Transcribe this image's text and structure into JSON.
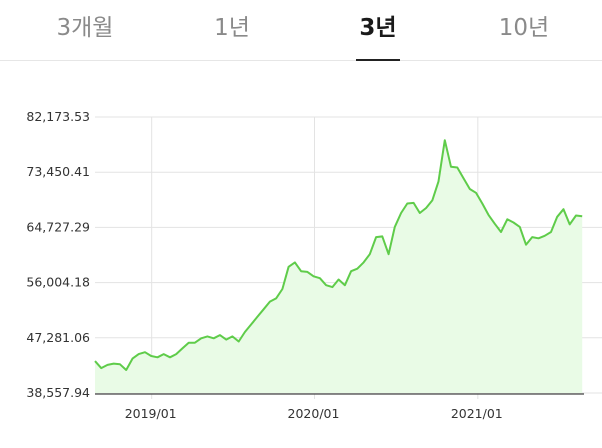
{
  "tabs": [
    {
      "label": "3개월",
      "active": false
    },
    {
      "label": "1년",
      "active": false
    },
    {
      "label": "3년",
      "active": true
    },
    {
      "label": "10년",
      "active": false
    }
  ],
  "colors": {
    "line": "#5fcc4a",
    "area": "#e9fbe6",
    "grid": "#e3e3e3",
    "axis": "#444444"
  },
  "chart_data": {
    "type": "area",
    "title": "",
    "xlabel": "",
    "ylabel": "",
    "y_ticks": [
      "82,173.53",
      "73,450.41",
      "64,727.29",
      "56,004.18",
      "47,281.06",
      "38,557.94"
    ],
    "ylim": [
      38557.94,
      82173.53
    ],
    "x_ticks": [
      {
        "label": "2019/01",
        "date": "2019-01-01"
      },
      {
        "label": "2020/01",
        "date": "2020-01-01"
      },
      {
        "label": "2021/01",
        "date": "2021-01-01"
      }
    ],
    "xlim": [
      "2018-08-27",
      "2021-08-27"
    ],
    "grid": true,
    "series": [
      {
        "points": [
          [
            "2018-08-27",
            43600
          ],
          [
            "2018-09-10",
            42500
          ],
          [
            "2018-09-24",
            43000
          ],
          [
            "2018-10-08",
            43200
          ],
          [
            "2018-10-22",
            43100
          ],
          [
            "2018-11-05",
            42200
          ],
          [
            "2018-11-19",
            44000
          ],
          [
            "2018-12-03",
            44700
          ],
          [
            "2018-12-17",
            45000
          ],
          [
            "2018-12-31",
            44400
          ],
          [
            "2019-01-14",
            44200
          ],
          [
            "2019-01-28",
            44700
          ],
          [
            "2019-02-11",
            44200
          ],
          [
            "2019-02-25",
            44700
          ],
          [
            "2019-03-11",
            45600
          ],
          [
            "2019-03-25",
            46500
          ],
          [
            "2019-04-08",
            46500
          ],
          [
            "2019-04-22",
            47200
          ],
          [
            "2019-05-06",
            47500
          ],
          [
            "2019-05-20",
            47200
          ],
          [
            "2019-06-03",
            47700
          ],
          [
            "2019-06-17",
            47000
          ],
          [
            "2019-07-01",
            47500
          ],
          [
            "2019-07-15",
            46700
          ],
          [
            "2019-07-29",
            48200
          ],
          [
            "2019-08-12",
            49400
          ],
          [
            "2019-08-26",
            50600
          ],
          [
            "2019-09-09",
            51800
          ],
          [
            "2019-09-23",
            53000
          ],
          [
            "2019-10-07",
            53500
          ],
          [
            "2019-10-21",
            55000
          ],
          [
            "2019-11-04",
            58500
          ],
          [
            "2019-11-18",
            59200
          ],
          [
            "2019-12-02",
            57800
          ],
          [
            "2019-12-16",
            57700
          ],
          [
            "2019-12-30",
            57000
          ],
          [
            "2020-01-13",
            56700
          ],
          [
            "2020-01-27",
            55600
          ],
          [
            "2020-02-10",
            55300
          ],
          [
            "2020-02-24",
            56500
          ],
          [
            "2020-03-09",
            55600
          ],
          [
            "2020-03-23",
            57800
          ],
          [
            "2020-04-06",
            58200
          ],
          [
            "2020-04-20",
            59200
          ],
          [
            "2020-05-04",
            60500
          ],
          [
            "2020-05-18",
            63200
          ],
          [
            "2020-06-01",
            63300
          ],
          [
            "2020-06-15",
            60500
          ],
          [
            "2020-06-29",
            64800
          ],
          [
            "2020-07-13",
            67000
          ],
          [
            "2020-07-27",
            68500
          ],
          [
            "2020-08-10",
            68600
          ],
          [
            "2020-08-24",
            67000
          ],
          [
            "2020-09-07",
            67800
          ],
          [
            "2020-09-21",
            69000
          ],
          [
            "2020-10-05",
            72000
          ],
          [
            "2020-10-19",
            78500
          ],
          [
            "2020-11-02",
            74300
          ],
          [
            "2020-11-16",
            74200
          ],
          [
            "2020-11-30",
            72500
          ],
          [
            "2020-12-14",
            70800
          ],
          [
            "2020-12-28",
            70200
          ],
          [
            "2021-01-11",
            68500
          ],
          [
            "2021-01-25",
            66700
          ],
          [
            "2021-02-08",
            65300
          ],
          [
            "2021-02-22",
            64000
          ],
          [
            "2021-03-08",
            66000
          ],
          [
            "2021-03-22",
            65500
          ],
          [
            "2021-04-05",
            64800
          ],
          [
            "2021-04-19",
            62000
          ],
          [
            "2021-05-03",
            63200
          ],
          [
            "2021-05-17",
            63000
          ],
          [
            "2021-05-31",
            63400
          ],
          [
            "2021-06-14",
            64000
          ],
          [
            "2021-06-28",
            66400
          ],
          [
            "2021-07-12",
            67600
          ],
          [
            "2021-07-26",
            65200
          ],
          [
            "2021-08-09",
            66600
          ],
          [
            "2021-08-23",
            66500
          ]
        ]
      }
    ]
  }
}
